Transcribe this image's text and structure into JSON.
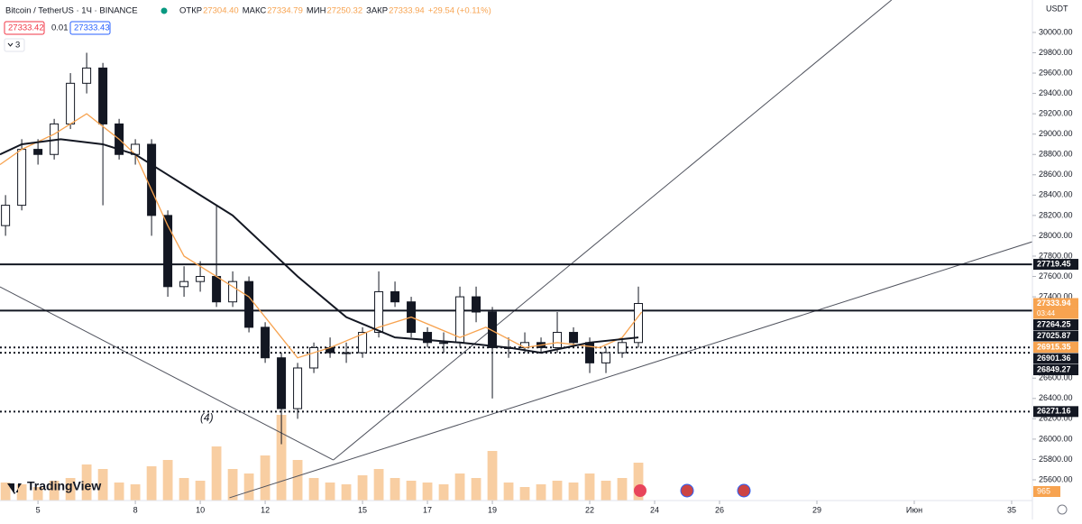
{
  "header": {
    "symbol": "Bitcoin / TetherUS · 1Ч · BINANCE",
    "ohlc": [
      {
        "label": "ОТКР",
        "value": "27304.40"
      },
      {
        "label": "МАКС",
        "value": "27334.79"
      },
      {
        "label": "МИН",
        "value": "27250.32"
      },
      {
        "label": "ЗАКР",
        "value": "27333.94"
      }
    ],
    "change": "+29.54 (+0.11%)"
  },
  "quote": {
    "bid": "27333.42",
    "spread": "0.01",
    "ask": "27333.43"
  },
  "indicators_count": "3",
  "currency": "USDT",
  "logo": "TradingView",
  "chart_data": {
    "type": "candlestick",
    "x": [
      4.0,
      4.5,
      5.0,
      5.5,
      6.0,
      6.5,
      7.0,
      7.5,
      8.0,
      8.5,
      9.0,
      9.5,
      10.0,
      10.5,
      11.0,
      11.5,
      12.0,
      12.5,
      13.0,
      13.5,
      14.0,
      14.5,
      15.0,
      15.5,
      16.0,
      16.5,
      17.0,
      17.5,
      18.0,
      18.5,
      19.0,
      19.5,
      20.0,
      20.5,
      21.0,
      21.5,
      22.0,
      22.5,
      23.0,
      23.5
    ],
    "open": [
      28100,
      28300,
      28850,
      28800,
      29100,
      29500,
      29650,
      29100,
      28800,
      28900,
      28200,
      27500,
      27550,
      27600,
      27350,
      27550,
      27100,
      26800,
      26300,
      26700,
      26900,
      26850,
      26850,
      27050,
      27450,
      27350,
      27050,
      26950,
      26950,
      27400,
      27250,
      26900,
      26900,
      26950,
      26900,
      27050,
      26950,
      26750,
      26850,
      26950
    ],
    "high": [
      28400,
      28950,
      28950,
      29150,
      29600,
      29800,
      29700,
      29150,
      28950,
      28950,
      28250,
      27700,
      27750,
      28300,
      27650,
      27600,
      27150,
      26850,
      26750,
      26950,
      27000,
      26950,
      27100,
      27650,
      27550,
      27400,
      27100,
      27050,
      27500,
      27500,
      27300,
      27000,
      27050,
      27000,
      27250,
      27100,
      27000,
      26900,
      27000,
      27500
    ],
    "low": [
      28000,
      28250,
      28700,
      28750,
      29050,
      29400,
      28300,
      28750,
      28700,
      28000,
      27400,
      27400,
      27450,
      27300,
      27300,
      27050,
      26750,
      25950,
      26200,
      26650,
      26800,
      26750,
      26800,
      27000,
      27300,
      27000,
      26900,
      26850,
      26900,
      27150,
      26400,
      26800,
      26850,
      26850,
      26850,
      26900,
      26650,
      26650,
      26800,
      26900
    ],
    "close": [
      28300,
      28850,
      28800,
      29100,
      29500,
      29650,
      29100,
      28800,
      28900,
      28200,
      27500,
      27550,
      27600,
      27350,
      27550,
      27100,
      26800,
      26300,
      26700,
      26900,
      26850,
      26850,
      27050,
      27450,
      27350,
      27050,
      26950,
      26950,
      27400,
      27250,
      26900,
      26900,
      26950,
      26900,
      27050,
      26950,
      26750,
      26850,
      26950,
      27334
    ],
    "volume": [
      20,
      18,
      15,
      22,
      25,
      40,
      35,
      20,
      18,
      38,
      45,
      25,
      22,
      60,
      35,
      30,
      50,
      95,
      45,
      25,
      20,
      18,
      28,
      35,
      25,
      22,
      20,
      18,
      30,
      25,
      55,
      20,
      15,
      18,
      22,
      20,
      30,
      22,
      25,
      42
    ],
    "volume_color": "#f5b97a",
    "up_color": "#ffffff",
    "down_color": "#131722",
    "xlim": [
      3.83,
      35.64
    ],
    "ylim": [
      25396,
      30319
    ],
    "xticks": [
      5,
      8,
      10,
      12,
      15,
      17,
      19,
      22,
      24,
      26,
      29,
      {
        "value": 32,
        "label": "Июн"
      },
      35
    ],
    "yticks": [
      {
        "value": 25600,
        "label": "25600.00"
      },
      {
        "value": 25800,
        "label": "25800.00"
      },
      {
        "value": 26000,
        "label": "26000.00"
      },
      {
        "value": 26200,
        "label": "26200.00"
      },
      {
        "value": 26400,
        "label": "26400.00"
      },
      {
        "value": 26600,
        "label": "26600.00"
      },
      {
        "value": 27400,
        "label": "27400.00"
      },
      {
        "value": 27600,
        "label": "27600.00"
      },
      {
        "value": 27800,
        "label": "27800.00"
      },
      {
        "value": 28000,
        "label": "28000.00"
      },
      {
        "value": 28200,
        "label": "28200.00"
      },
      {
        "value": 28400,
        "label": "28400.00"
      },
      {
        "value": 28600,
        "label": "28600.00"
      },
      {
        "value": 28800,
        "label": "28800.00"
      },
      {
        "value": 29000,
        "label": "29000.00"
      },
      {
        "value": 29200,
        "label": "29200.00"
      },
      {
        "value": 29400,
        "label": "29400.00"
      },
      {
        "value": 29600,
        "label": "29600.00"
      },
      {
        "value": 29800,
        "label": "29800.00"
      },
      {
        "value": 30000,
        "label": "30000.00"
      }
    ],
    "moving_averages": [
      {
        "color": "#f7a350",
        "x": [
          3.83,
          4.5,
          5.5,
          6.5,
          7.5,
          8.0,
          9.0,
          9.5,
          10.5,
          11.5,
          12.5,
          13.0,
          14.0,
          15.5,
          16.5,
          18.0,
          18.8,
          20.0,
          21.0,
          22.3,
          23.0,
          23.6
        ],
        "values": [
          28700,
          28850,
          29000,
          29200,
          28950,
          28800,
          28100,
          27800,
          27600,
          27400,
          27000,
          26800,
          26900,
          27100,
          27200,
          27000,
          27100,
          26900,
          26950,
          26900,
          27000,
          27250
        ]
      },
      {
        "color": "#131722",
        "x": [
          3.83,
          4.5,
          5.7,
          7.0,
          8.0,
          9.0,
          10.0,
          11.0,
          12.0,
          13.0,
          14.5,
          16.0,
          18.0,
          19.5,
          20.5,
          22.0,
          23.5
        ],
        "values": [
          28800,
          28900,
          28950,
          28900,
          28800,
          28600,
          28400,
          28200,
          27900,
          27600,
          27200,
          27000,
          26950,
          26900,
          26850,
          26950,
          27000
        ]
      }
    ],
    "trend_lines": [
      {
        "x": [
          3.83,
          14.1
        ],
        "values": [
          27498,
          25795
        ]
      },
      {
        "x": [
          14.1,
          31.3
        ],
        "values": [
          25795,
          30319
        ]
      },
      {
        "x": [
          10.9,
          35.64
        ],
        "values": [
          25423,
          27942
        ]
      }
    ],
    "price_labels": [
      {
        "value": 27719.45,
        "color": "#131722",
        "line": "solid"
      },
      {
        "value": 27333.94,
        "color": "#f7a350"
      },
      {
        "value": 27264.25,
        "color": "#131722",
        "line": "solid"
      },
      {
        "value": 27025.87,
        "color": "#131722"
      },
      {
        "value": 26915.35,
        "color": "#f7a350"
      },
      {
        "value": 26901.36,
        "color": "#131722",
        "line": "dotted"
      },
      {
        "value": 26849.27,
        "color": "#131722",
        "line": "dotted"
      },
      {
        "value": 26271.16,
        "color": "#131722",
        "line": "dotted"
      }
    ],
    "countdown": "03:44",
    "volume_label": "965",
    "annotation": {
      "text": "(4)",
      "x": 10.2,
      "y": 26203
    }
  }
}
